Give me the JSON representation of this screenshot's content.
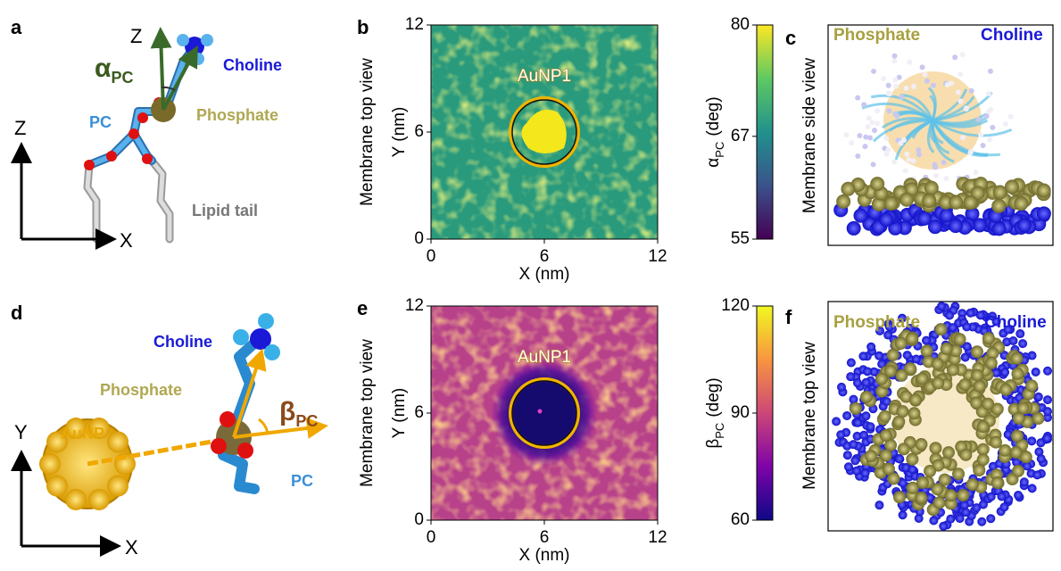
{
  "a": {
    "label": "a",
    "vector_z": "Z",
    "angle": "α",
    "angle_sub": "PC",
    "choline": "Choline",
    "pc": "PC",
    "phosphate": "Phosphate",
    "axis_z": "Z",
    "axis_x": "X",
    "lipid_tail": "Lipid tail"
  },
  "b": {
    "label": "b",
    "side_label": "Membrane top view",
    "x_label": "X (nm)",
    "y_label": "Y (nm)",
    "annotation": "AuNP1",
    "xlim": [
      0,
      12
    ],
    "ylim": [
      0,
      12
    ],
    "xticks": [
      0,
      6,
      12
    ],
    "yticks": [
      0,
      6,
      12
    ],
    "colorbar": {
      "symbol": "α",
      "sub": "PC",
      "unit": "(deg)",
      "lim": [
        55,
        80
      ],
      "ticks": [
        55,
        67,
        80
      ]
    }
  },
  "c": {
    "label": "c",
    "side_label": "Membrane side view",
    "phosphate": "Phosphate",
    "choline": "Choline"
  },
  "d": {
    "label": "d",
    "choline": "Choline",
    "phosphate": "Phosphate",
    "axis_y": "Y",
    "aunp": "AuNP",
    "angle": "β",
    "angle_sub": "PC",
    "pc": "PC",
    "axis_x": "X"
  },
  "e": {
    "label": "e",
    "side_label": "Membrane top view",
    "x_label": "X (nm)",
    "y_label": "Y (nm)",
    "annotation": "AuNP1",
    "xlim": [
      0,
      12
    ],
    "ylim": [
      0,
      12
    ],
    "xticks": [
      0,
      6,
      12
    ],
    "yticks": [
      0,
      6,
      12
    ],
    "colorbar": {
      "symbol": "β",
      "sub": "PC",
      "unit": "(deg)",
      "lim": [
        60,
        120
      ],
      "ticks": [
        60,
        90,
        120
      ]
    }
  },
  "f": {
    "label": "f",
    "side_label": "Membrane top view",
    "phosphate": "Phosphate",
    "choline": "Choline"
  }
}
